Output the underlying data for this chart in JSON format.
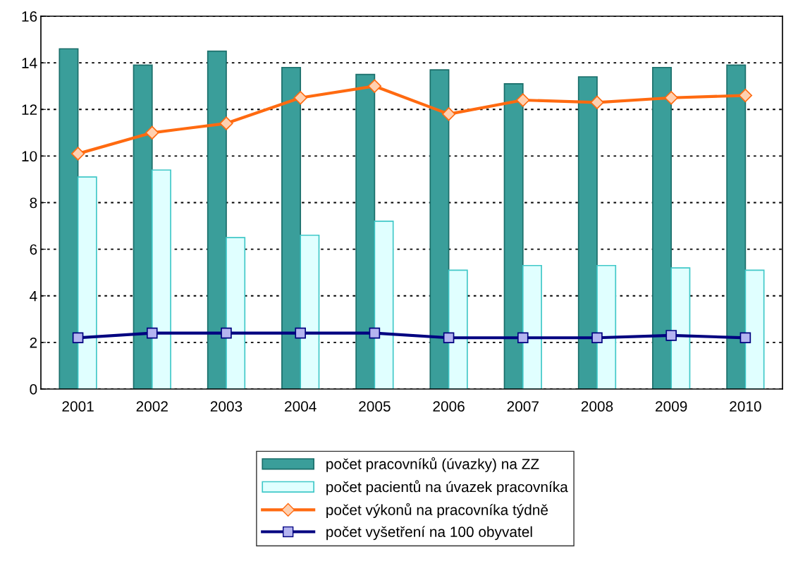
{
  "chart_data": {
    "type": "bar",
    "categories": [
      "2001",
      "2002",
      "2003",
      "2004",
      "2005",
      "2006",
      "2007",
      "2008",
      "2009",
      "2010"
    ],
    "series": [
      {
        "name": "počet pracovníků (úvazky) na ZZ",
        "color": "#3a9e9a",
        "values": [
          14.6,
          13.9,
          14.5,
          13.8,
          13.5,
          13.7,
          13.1,
          13.4,
          13.8,
          13.9
        ]
      },
      {
        "name": "počet pacientů na úvazek pracovníka",
        "color": "#e0ffff",
        "values": [
          9.1,
          9.4,
          6.5,
          6.6,
          7.2,
          5.1,
          5.3,
          5.3,
          5.2,
          5.1
        ]
      },
      {
        "name": "počet výkonů na pracovníka týdně",
        "type": "line",
        "color": "#ff6a10",
        "marker": "diamond",
        "values": [
          10.1,
          11.0,
          11.4,
          12.5,
          13.0,
          11.8,
          12.4,
          12.3,
          12.5,
          12.6
        ]
      },
      {
        "name": "počet vyšetření na 100 obyvatel",
        "type": "line",
        "color": "#000080",
        "marker": "square",
        "values": [
          2.2,
          2.4,
          2.4,
          2.4,
          2.4,
          2.2,
          2.2,
          2.2,
          2.3,
          2.2
        ]
      }
    ],
    "ylim": [
      0,
      16
    ],
    "yticks": [
      0,
      2,
      4,
      6,
      8,
      10,
      12,
      14,
      16
    ],
    "grid": "y",
    "legend": "bottom"
  }
}
